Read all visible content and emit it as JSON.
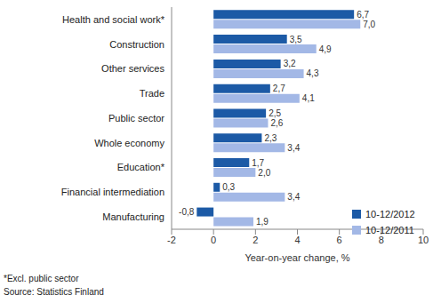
{
  "chart_data": {
    "type": "bar",
    "orientation": "horizontal",
    "categories": [
      "Health and social work*",
      "Construction",
      "Other services",
      "Trade",
      "Public sector",
      "Whole economy",
      "Education*",
      "Financial intermediation",
      "Manufacturing"
    ],
    "series": [
      {
        "name": "10-12/2012",
        "color": "#1c5aa6",
        "values": [
          6.7,
          3.5,
          3.2,
          2.7,
          2.5,
          2.3,
          1.7,
          0.3,
          -0.8
        ],
        "value_labels": [
          "6,7",
          "3,5",
          "3,2",
          "2,7",
          "2,5",
          "2,3",
          "1,7",
          "0,3",
          "-0,8"
        ]
      },
      {
        "name": "10-12/2011",
        "color": "#a3b8e6",
        "values": [
          7.0,
          4.9,
          4.3,
          4.1,
          2.6,
          3.4,
          2.0,
          3.4,
          1.9
        ],
        "value_labels": [
          "7,0",
          "4,9",
          "4,3",
          "4,1",
          "2,6",
          "3,4",
          "2,0",
          "3,4",
          "1,9"
        ]
      }
    ],
    "x_label": "Year-on-year change, %",
    "xlim": [
      -2,
      10
    ],
    "xticks": [
      -2,
      0,
      2,
      4,
      6,
      8,
      10
    ],
    "grid": false,
    "legend": "lower right",
    "data_labels": true,
    "footnotes": [
      "*Excl. public sector",
      "Source: Statistics Finland"
    ]
  }
}
